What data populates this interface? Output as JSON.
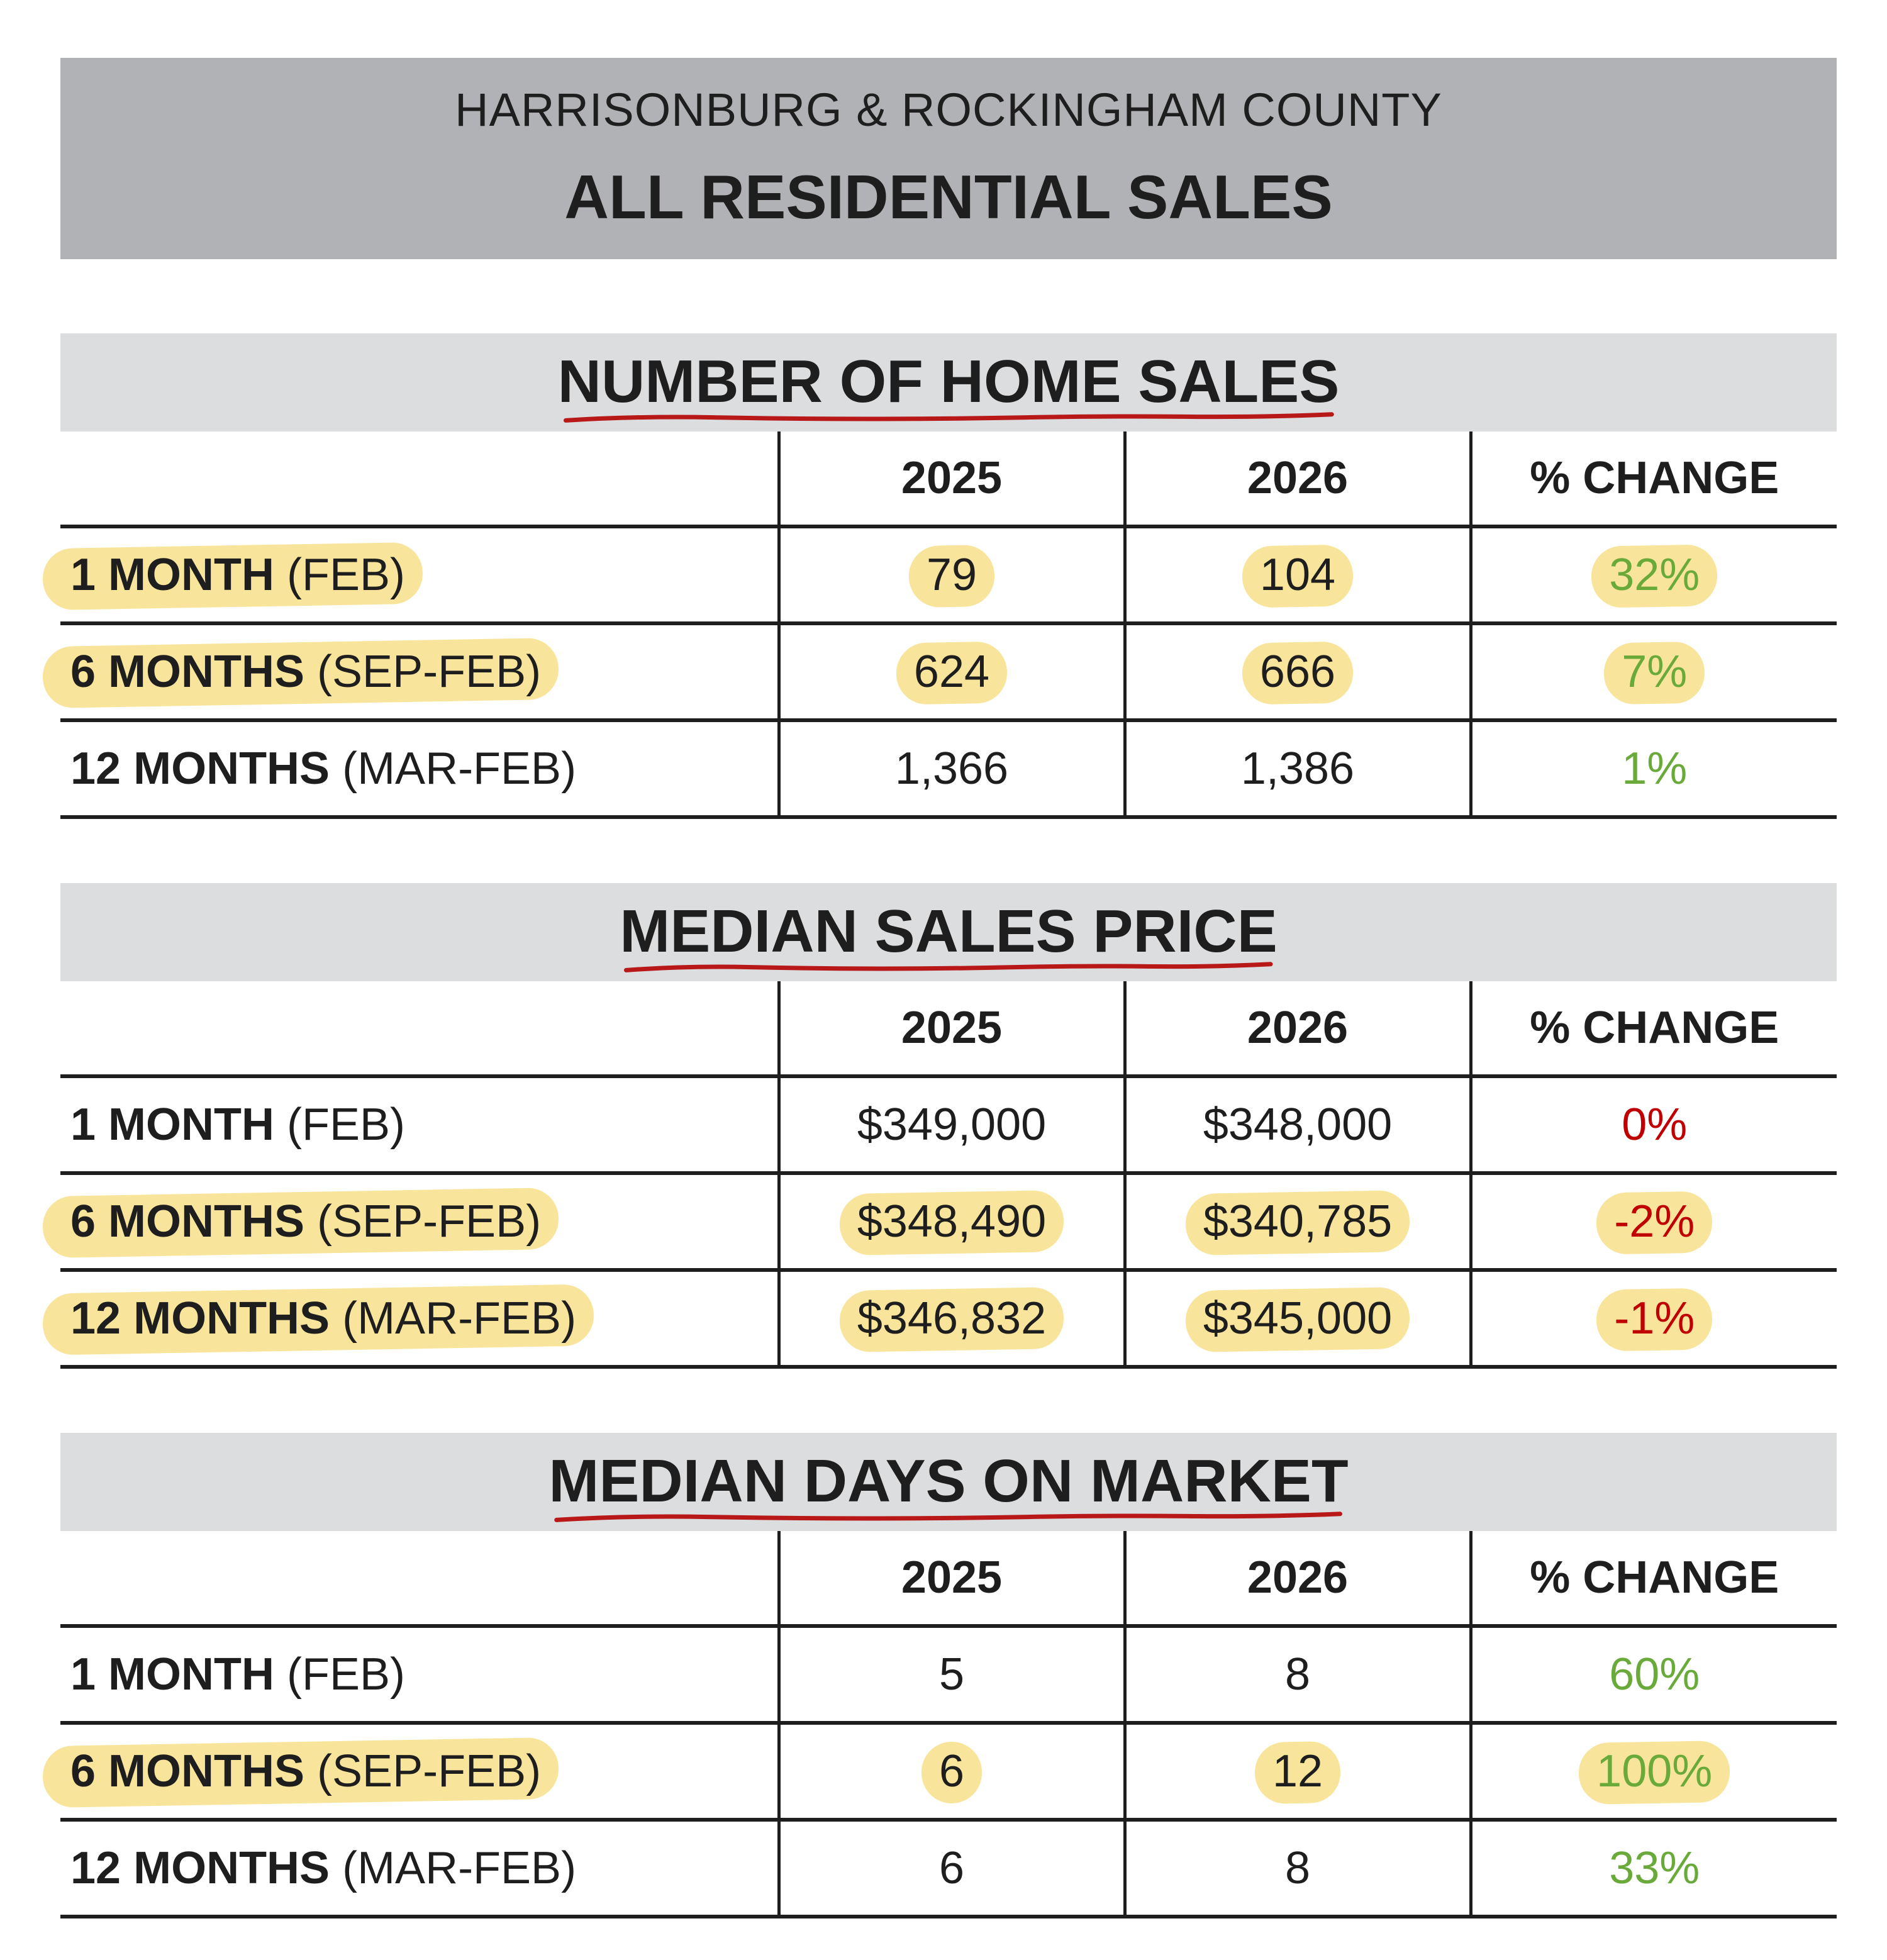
{
  "banner": {
    "line1": "HARRISONBURG & ROCKINGHAM COUNTY",
    "line2": "ALL RESIDENTIAL SALES"
  },
  "colors": {
    "highlight": "#f8e59b",
    "positive": "#6aaa3a",
    "negative": "#c00000",
    "underline": "#b81818"
  },
  "sections": [
    {
      "title": "NUMBER OF HOME SALES",
      "headers": [
        "",
        "2025",
        "2026",
        "% CHANGE"
      ],
      "rows": [
        {
          "period": "1 MONTH",
          "range": "(FEB)",
          "v2025": "79",
          "v2026": "104",
          "change": "32%",
          "trend": "positive",
          "highlighted": true
        },
        {
          "period": "6 MONTHS",
          "range": "(SEP-FEB)",
          "v2025": "624",
          "v2026": "666",
          "change": "7%",
          "trend": "positive",
          "highlighted": true
        },
        {
          "period": "12 MONTHS",
          "range": "(MAR-FEB)",
          "v2025": "1,366",
          "v2026": "1,386",
          "change": "1%",
          "trend": "positive",
          "highlighted": false
        }
      ]
    },
    {
      "title": "MEDIAN SALES PRICE",
      "headers": [
        "",
        "2025",
        "2026",
        "% CHANGE"
      ],
      "rows": [
        {
          "period": "1 MONTH",
          "range": "(FEB)",
          "v2025": "$349,000",
          "v2026": "$348,000",
          "change": "0%",
          "trend": "negative",
          "highlighted": false
        },
        {
          "period": "6 MONTHS",
          "range": "(SEP-FEB)",
          "v2025": "$348,490",
          "v2026": "$340,785",
          "change": "-2%",
          "trend": "negative",
          "highlighted": true
        },
        {
          "period": "12 MONTHS",
          "range": "(MAR-FEB)",
          "v2025": "$346,832",
          "v2026": "$345,000",
          "change": "-1%",
          "trend": "negative",
          "highlighted": true
        }
      ]
    },
    {
      "title": "MEDIAN DAYS ON MARKET",
      "headers": [
        "",
        "2025",
        "2026",
        "% CHANGE"
      ],
      "rows": [
        {
          "period": "1 MONTH",
          "range": "(FEB)",
          "v2025": "5",
          "v2026": "8",
          "change": "60%",
          "trend": "positive",
          "highlighted": false
        },
        {
          "period": "6 MONTHS",
          "range": "(SEP-FEB)",
          "v2025": "6",
          "v2026": "12",
          "change": "100%",
          "trend": "positive",
          "highlighted": true
        },
        {
          "period": "12 MONTHS",
          "range": "(MAR-FEB)",
          "v2025": "6",
          "v2026": "8",
          "change": "33%",
          "trend": "positive",
          "highlighted": false
        }
      ]
    }
  ]
}
